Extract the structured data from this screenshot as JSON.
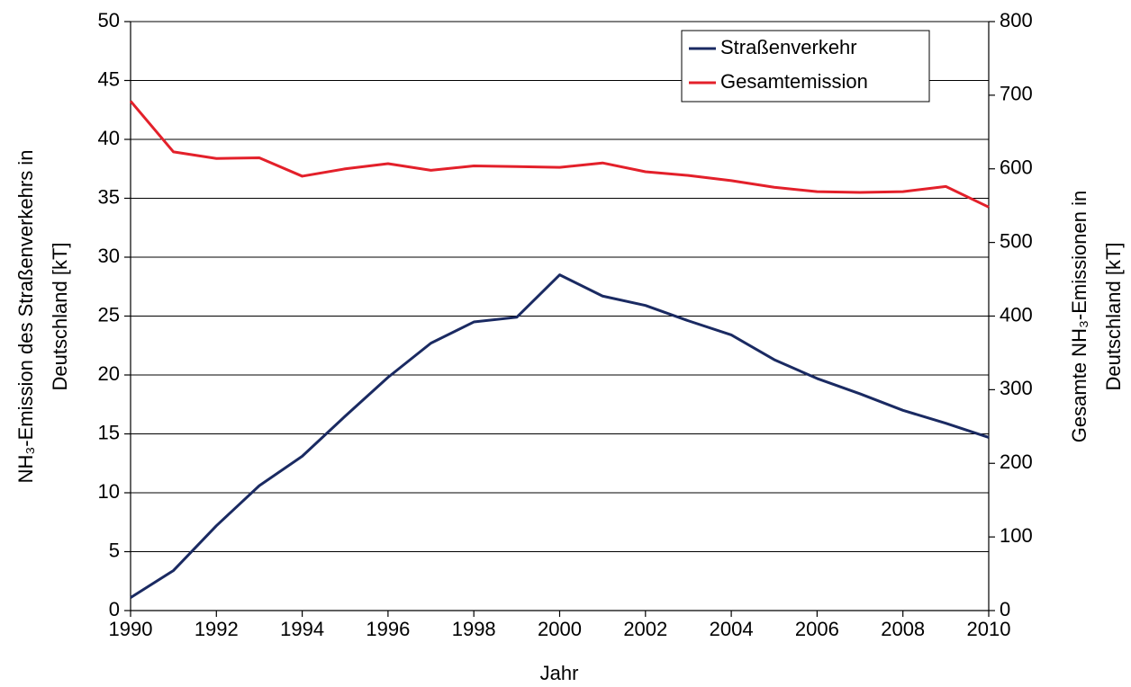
{
  "chart_data": {
    "type": "line",
    "xlabel": "Jahr",
    "ylabel": [
      "NH₃-Emission des Straßenverkehrs in",
      "Deutschland [kT]"
    ],
    "y2label": [
      "Gesamte NH₃-Emissionen in",
      "Deutschland [kT]"
    ],
    "x": [
      1990,
      1991,
      1992,
      1993,
      1994,
      1995,
      1996,
      1997,
      1998,
      1999,
      2000,
      2001,
      2002,
      2003,
      2004,
      2005,
      2006,
      2007,
      2008,
      2009,
      2010
    ],
    "series": [
      {
        "name": "Straßenverkehr",
        "color": "#1a2a62",
        "values": [
          1.1,
          3.4,
          7.2,
          10.6,
          13.1,
          16.5,
          19.8,
          22.7,
          24.5,
          24.9,
          28.5,
          26.7,
          25.9,
          24.6,
          23.4,
          21.3,
          19.7,
          18.4,
          17.0,
          15.9,
          14.7
        ]
      },
      {
        "name": "Gesamtemission",
        "color": "#e3202a",
        "axis": "y2",
        "values": [
          692,
          623,
          614,
          615,
          590,
          600,
          607,
          598,
          604,
          603,
          602,
          608,
          596,
          591,
          584,
          575,
          569,
          568,
          569,
          576,
          548
        ]
      }
    ],
    "xlim": [
      1990,
      2010
    ],
    "xticks": [
      1990,
      1992,
      1994,
      1996,
      1998,
      2000,
      2002,
      2004,
      2006,
      2008,
      2010
    ],
    "ylim": [
      0,
      50
    ],
    "yticks": [
      0,
      5,
      10,
      15,
      20,
      25,
      30,
      35,
      40,
      45,
      50
    ],
    "y2lim": [
      0,
      800
    ],
    "y2ticks": [
      0,
      100,
      200,
      300,
      400,
      500,
      600,
      700,
      800
    ],
    "grid": true,
    "legend": "top-right"
  }
}
